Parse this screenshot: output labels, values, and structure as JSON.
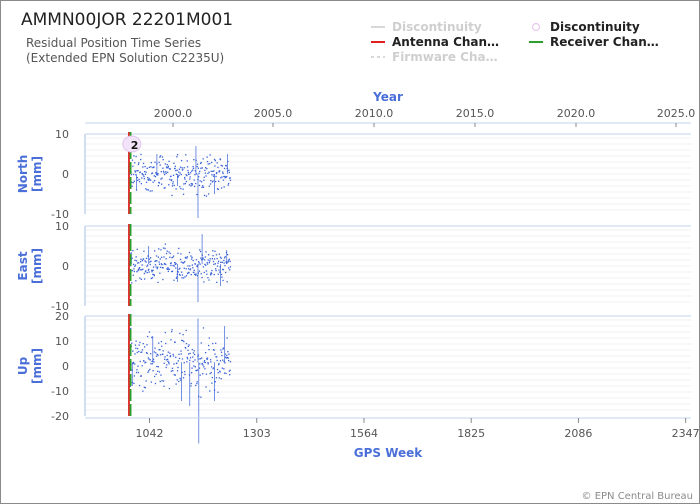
{
  "chart_data": {
    "type": "scatter",
    "title": "AMMN00JOR 22201M001",
    "subtitle_lines": [
      "Residual Position Time Series",
      "(Extended EPN Solution C2235U)"
    ],
    "top_axis": {
      "title": "Year",
      "ticks": [
        "2000.0",
        "2005.0",
        "2010.0",
        "2015.0",
        "2020.0",
        "2025.0"
      ]
    },
    "bottom_axis": {
      "title": "GPS Week",
      "ticks": [
        "1042",
        "1303",
        "1564",
        "1825",
        "2086",
        "2347"
      ],
      "range": [
        885,
        2360
      ]
    },
    "panels": [
      {
        "name": "North",
        "ylabel": "North [mm]",
        "ylim": [
          -10,
          10
        ],
        "ticks": [
          "10",
          "0",
          "-10"
        ],
        "series": {
          "x_start": 990,
          "x_end": 1238,
          "center": 0,
          "spread": 2.2,
          "excursions": [
            {
              "x": 995,
              "y": 3
            },
            {
              "x": 1010,
              "y": -4
            },
            {
              "x": 1060,
              "y": 5
            },
            {
              "x": 1110,
              "y": -3
            },
            {
              "x": 1155,
              "y": 7
            },
            {
              "x": 1160,
              "y": -11
            },
            {
              "x": 1200,
              "y": -5
            },
            {
              "x": 1232,
              "y": 5
            }
          ]
        }
      },
      {
        "name": "East",
        "ylabel": "East [mm]",
        "ylim": [
          -10,
          10
        ],
        "ticks": [
          "10",
          "0",
          "-10"
        ],
        "series": {
          "x_start": 990,
          "x_end": 1238,
          "center": 0.5,
          "spread": 2.0,
          "excursions": [
            {
              "x": 998,
              "y": 3
            },
            {
              "x": 1040,
              "y": 5
            },
            {
              "x": 1110,
              "y": -4
            },
            {
              "x": 1160,
              "y": -9
            },
            {
              "x": 1170,
              "y": 8
            },
            {
              "x": 1215,
              "y": -5
            },
            {
              "x": 1230,
              "y": 4
            }
          ]
        }
      },
      {
        "name": "Up",
        "ylabel": "Up [mm]",
        "ylim": [
          -20,
          20
        ],
        "ticks": [
          "20",
          "10",
          "0",
          "-10",
          "-20"
        ],
        "series": {
          "x_start": 990,
          "x_end": 1238,
          "center": 1.5,
          "spread": 5.5,
          "excursions": [
            {
              "x": 1000,
              "y": -8
            },
            {
              "x": 1050,
              "y": 12
            },
            {
              "x": 1120,
              "y": -14
            },
            {
              "x": 1140,
              "y": -16
            },
            {
              "x": 1160,
              "y": 19
            },
            {
              "x": 1162,
              "y": -31
            },
            {
              "x": 1200,
              "y": -14
            },
            {
              "x": 1225,
              "y": 16
            }
          ]
        }
      }
    ],
    "events": [
      {
        "type": "antenna_change",
        "x": 994,
        "label": "2"
      },
      {
        "type": "receiver_change",
        "x": 994
      }
    ],
    "legend": {
      "placement": "top-right",
      "items": [
        {
          "label": "Discontinuity",
          "style": "line",
          "color": "#d8d8d8",
          "active": false
        },
        {
          "label": "Discontinuity",
          "style": "circle",
          "color": "#e7c9f0",
          "active": true
        },
        {
          "label": "Antenna Chan…",
          "style": "line",
          "color": "#e02020",
          "active": true
        },
        {
          "label": "Receiver Chan…",
          "style": "line",
          "color": "#2ca02c",
          "active": true
        },
        {
          "label": "Firmware Cha…",
          "style": "dashed",
          "color": "#d8d8d8",
          "active": false
        }
      ]
    },
    "colors": {
      "points": "#3a62d7",
      "axis_title": "#4a6fd8",
      "grid": "#e6e6e6",
      "axis_line": "#c3d3ec"
    },
    "credit": "© EPN Central Bureau"
  }
}
